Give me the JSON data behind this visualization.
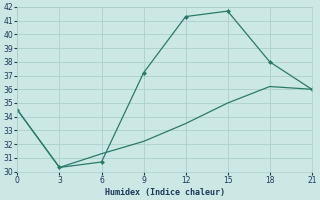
{
  "line1_x": [
    0,
    3,
    6,
    9,
    12,
    15,
    18,
    21
  ],
  "line1_y": [
    34.5,
    30.3,
    30.7,
    37.2,
    41.3,
    41.7,
    38.0,
    36.0
  ],
  "line2_x": [
    0,
    3,
    6,
    9,
    12,
    15,
    18,
    21
  ],
  "line2_y": [
    34.5,
    30.3,
    31.3,
    32.2,
    33.5,
    35.0,
    36.2,
    36.0
  ],
  "line_color": "#2a7a6a",
  "markersize": 2.5,
  "xlabel": "Humidex (Indice chaleur)",
  "xlim": [
    0,
    21
  ],
  "ylim": [
    30,
    42
  ],
  "xticks": [
    0,
    3,
    6,
    9,
    12,
    15,
    18,
    21
  ],
  "yticks": [
    30,
    31,
    32,
    33,
    34,
    35,
    36,
    37,
    38,
    39,
    40,
    41,
    42
  ],
  "bg_color": "#cce8e4",
  "grid_color": "#aad0cc",
  "font_color": "#1a3a5a",
  "title_fontsize": 7
}
